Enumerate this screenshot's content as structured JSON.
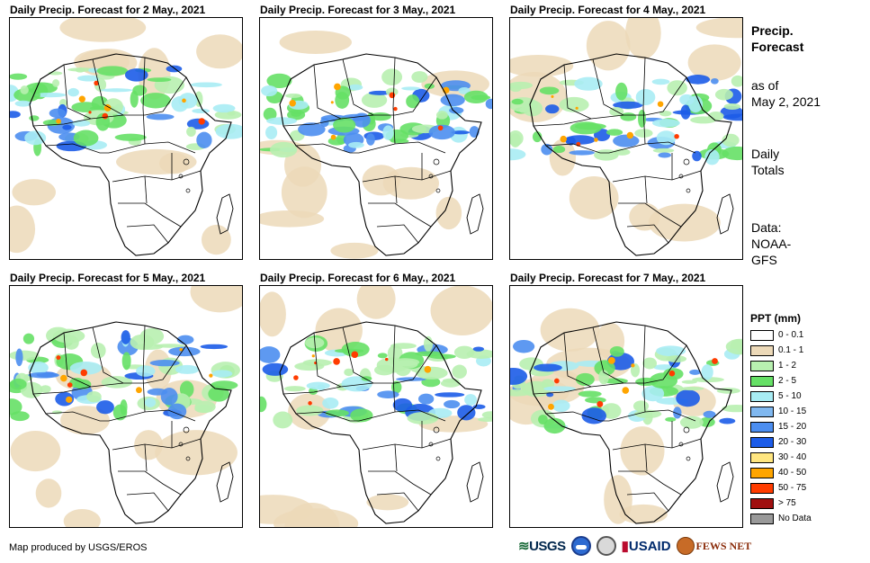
{
  "panels": [
    {
      "title": "Daily Precip. Forecast for 2 May., 2021"
    },
    {
      "title": "Daily Precip. Forecast for 3 May., 2021"
    },
    {
      "title": "Daily Precip. Forecast for 4 May., 2021"
    },
    {
      "title": "Daily Precip. Forecast for 5 May., 2021"
    },
    {
      "title": "Daily Precip. Forecast for 6 May., 2021"
    },
    {
      "title": "Daily Precip. Forecast for 7 May., 2021"
    }
  ],
  "side": {
    "title_line1": "Precip.",
    "title_line2": "Forecast",
    "asof_line1": "as of",
    "asof_line2": "May 2, 2021",
    "daily_line1": "Daily",
    "daily_line2": "Totals",
    "data_line1": "Data:",
    "data_line2": "NOAA-",
    "data_line3": "GFS"
  },
  "legend": {
    "title": "PPT (mm)",
    "items": [
      {
        "label": "0 - 0.1",
        "color": "#ffffff"
      },
      {
        "label": "0.1 - 1",
        "color": "#ecd9b8"
      },
      {
        "label": "1 - 2",
        "color": "#b8f0b0"
      },
      {
        "label": "2 - 5",
        "color": "#66e066"
      },
      {
        "label": "5 - 10",
        "color": "#a8ecf4"
      },
      {
        "label": "10 - 15",
        "color": "#80b8f0"
      },
      {
        "label": "15 - 20",
        "color": "#4c8ef0"
      },
      {
        "label": "20 - 30",
        "color": "#1c5ce8"
      },
      {
        "label": "30 - 40",
        "color": "#ffe680"
      },
      {
        "label": "40 - 50",
        "color": "#ffa500"
      },
      {
        "label": "50 - 75",
        "color": "#ff3c00"
      },
      {
        "label": "> 75",
        "color": "#a01010"
      },
      {
        "label": "No Data",
        "color": "#999999"
      }
    ]
  },
  "credit": "Map produced by USGS/EROS",
  "logos": {
    "usgs": "USGS",
    "usaid": "USAID",
    "fews": "FEWS NET"
  }
}
